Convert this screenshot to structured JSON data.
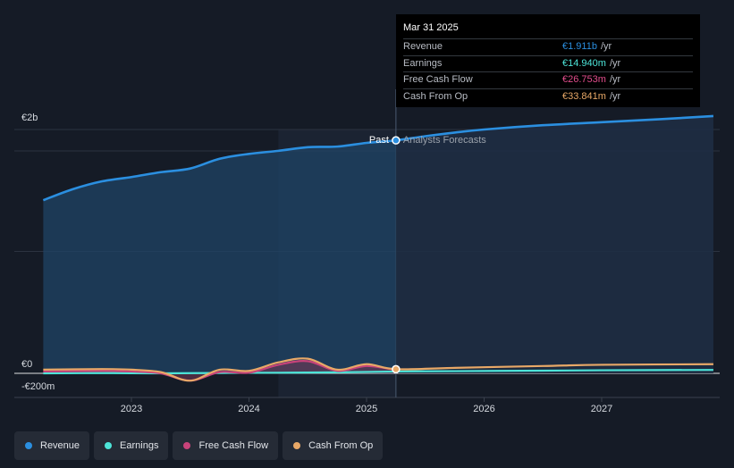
{
  "chart_data": {
    "type": "area",
    "x_ticks": [
      "2023",
      "2024",
      "2025",
      "2026",
      "2027"
    ],
    "y_ticks": [
      {
        "label": "€2b",
        "value": 2000
      },
      {
        "label": "€0",
        "value": 0
      },
      {
        "label": "-€200m",
        "value": -200
      }
    ],
    "ylim": [
      -200,
      2100
    ],
    "y_unit": "€m",
    "past_label": "Past",
    "forecast_label": "Analysts Forecasts",
    "divider_date": 2025.25,
    "past_start": 2024.25,
    "series": [
      {
        "name": "Revenue",
        "color": "#2b8fe0",
        "x": [
          2022.25,
          2022.5,
          2022.75,
          2023.0,
          2023.25,
          2023.5,
          2023.75,
          2024.0,
          2024.25,
          2024.5,
          2024.75,
          2025.0,
          2025.25,
          2025.5,
          2025.75,
          2026.0,
          2026.5,
          2027.0,
          2027.5,
          2027.95
        ],
        "values": [
          1420,
          1510,
          1575,
          1610,
          1650,
          1680,
          1760,
          1800,
          1825,
          1855,
          1860,
          1890,
          1911,
          1945,
          1975,
          2000,
          2035,
          2060,
          2085,
          2110
        ]
      },
      {
        "name": "Earnings",
        "color": "#4de4d8",
        "x": [
          2022.25,
          2022.75,
          2023.25,
          2023.75,
          2024.25,
          2024.75,
          2025.25,
          2025.75,
          2026.5,
          2027.0,
          2027.95
        ],
        "values": [
          0,
          2,
          0,
          3,
          5,
          8,
          14.94,
          18,
          22,
          25,
          28
        ]
      },
      {
        "name": "Free Cash Flow",
        "color": "#c8437a",
        "x": [
          2022.25,
          2022.75,
          2023.0,
          2023.25,
          2023.5,
          2023.75,
          2024.0,
          2024.25,
          2024.5,
          2024.75,
          2025.0,
          2025.25
        ],
        "values": [
          15,
          20,
          15,
          0,
          -60,
          10,
          5,
          70,
          100,
          20,
          60,
          26.753
        ]
      },
      {
        "name": "Cash From Op",
        "color": "#e8a867",
        "x": [
          2022.25,
          2022.75,
          2023.0,
          2023.25,
          2023.5,
          2023.75,
          2024.0,
          2024.25,
          2024.5,
          2024.75,
          2025.0,
          2025.25,
          2025.75,
          2026.5,
          2027.0,
          2027.95
        ],
        "values": [
          30,
          35,
          30,
          10,
          -60,
          30,
          20,
          90,
          120,
          30,
          75,
          33.841,
          45,
          60,
          70,
          75
        ]
      }
    ]
  },
  "tooltip": {
    "date": "Mar 31 2025",
    "rows": [
      {
        "label": "Revenue",
        "value": "€1.911b",
        "unit": "/yr",
        "color": "#2b8fe0"
      },
      {
        "label": "Earnings",
        "value": "€14.940m",
        "unit": "/yr",
        "color": "#4de4d8"
      },
      {
        "label": "Free Cash Flow",
        "value": "€26.753m",
        "unit": "/yr",
        "color": "#e24d8c"
      },
      {
        "label": "Cash From Op",
        "value": "€33.841m",
        "unit": "/yr",
        "color": "#e8a867"
      }
    ]
  },
  "legend": [
    {
      "label": "Revenue",
      "color": "#2b8fe0"
    },
    {
      "label": "Earnings",
      "color": "#4de4d8"
    },
    {
      "label": "Free Cash Flow",
      "color": "#c8437a"
    },
    {
      "label": "Cash From Op",
      "color": "#e8a867"
    }
  ]
}
